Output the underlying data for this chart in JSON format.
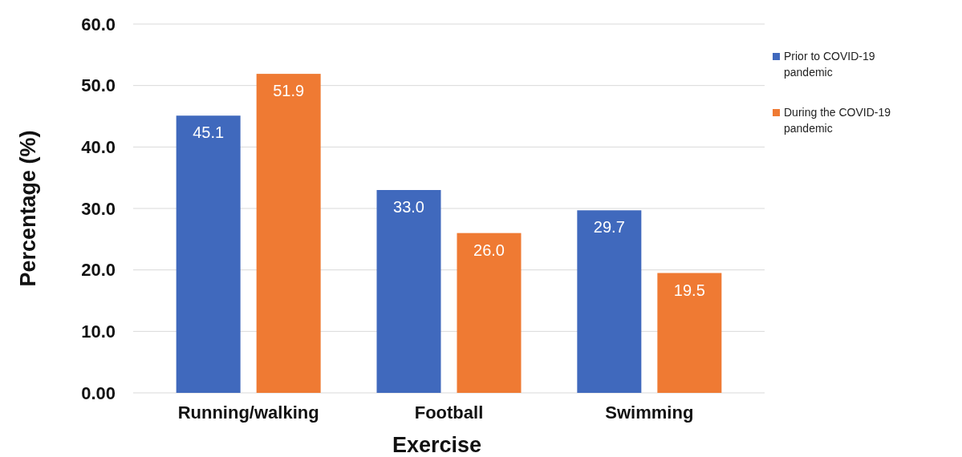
{
  "chart_data": {
    "type": "bar",
    "xlabel": "Exercise",
    "ylabel": "Percentage (%)",
    "categories": [
      "Running/walking",
      "Football",
      "Swimming"
    ],
    "series": [
      {
        "name": "Prior to COVID-19 pandemic",
        "color": "#4069bd",
        "values": [
          45.1,
          33.0,
          29.7
        ],
        "value_labels": [
          "45.1",
          "33.0",
          "29.7"
        ]
      },
      {
        "name": "During the COVID-19 pandemic",
        "color": "#ef7a33",
        "values": [
          51.9,
          26.0,
          19.5
        ],
        "value_labels": [
          "51.9",
          "26.0",
          "19.5"
        ]
      }
    ],
    "ylim": [
      0,
      60
    ],
    "yticks": [
      {
        "value": 0,
        "label": "0.00"
      },
      {
        "value": 10,
        "label": "10.0"
      },
      {
        "value": 20,
        "label": "20.0"
      },
      {
        "value": 30,
        "label": "30.0"
      },
      {
        "value": 40,
        "label": "40.0"
      },
      {
        "value": 50,
        "label": "50.0"
      },
      {
        "value": 60,
        "label": "60.0"
      }
    ],
    "grid": "y",
    "legend": "right"
  }
}
